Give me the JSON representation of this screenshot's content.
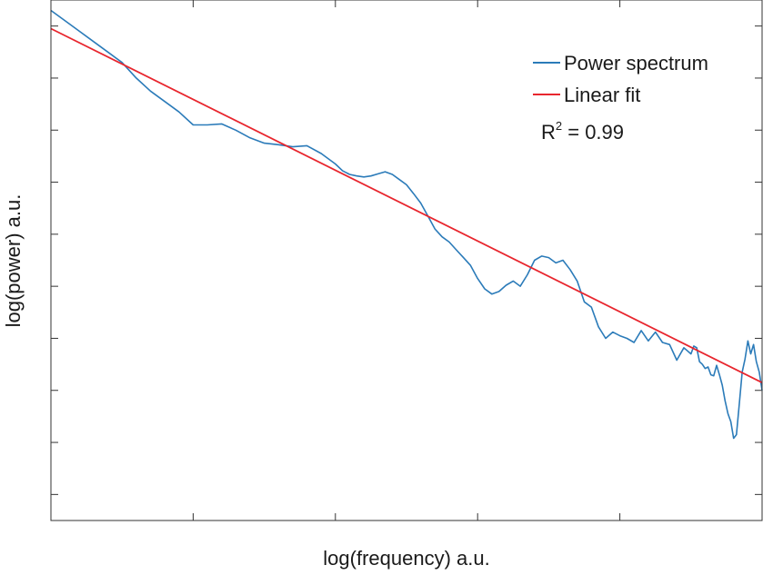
{
  "chart_data": {
    "type": "line",
    "title": "",
    "xlabel": "log(frequency) a.u.",
    "ylabel": "log(power) a.u.",
    "xlim": [
      0,
      5
    ],
    "ylim": [
      0,
      10
    ],
    "xticks": [
      1,
      2,
      3,
      4
    ],
    "yticks": [
      0.5,
      1.5,
      2.5,
      3.5,
      4.5,
      5.5,
      6.5,
      7.5,
      8.5,
      9.5
    ],
    "tick_labels_shown": false,
    "grid": false,
    "legend_position": "top-right",
    "annotation": {
      "base": "R",
      "sup": "2",
      "rest": " = 0.99"
    },
    "series": [
      {
        "name": "Power spectrum",
        "color": "#2b7bb9",
        "x": [
          0,
          0.1,
          0.2,
          0.3,
          0.4,
          0.5,
          0.6,
          0.7,
          0.8,
          0.9,
          1.0,
          1.1,
          1.2,
          1.3,
          1.4,
          1.5,
          1.6,
          1.7,
          1.8,
          1.9,
          2.0,
          2.05,
          2.1,
          2.15,
          2.2,
          2.25,
          2.3,
          2.35,
          2.4,
          2.45,
          2.5,
          2.55,
          2.6,
          2.65,
          2.7,
          2.75,
          2.8,
          2.85,
          2.9,
          2.95,
          3.0,
          3.05,
          3.1,
          3.15,
          3.2,
          3.25,
          3.3,
          3.35,
          3.4,
          3.45,
          3.5,
          3.55,
          3.6,
          3.65,
          3.7,
          3.75,
          3.8,
          3.85,
          3.9,
          3.95,
          4.0,
          4.05,
          4.1,
          4.15,
          4.2,
          4.25,
          4.3,
          4.35,
          4.4,
          4.45,
          4.5,
          4.52,
          4.54,
          4.56,
          4.58,
          4.6,
          4.62,
          4.64,
          4.66,
          4.68,
          4.7,
          4.72,
          4.74,
          4.76,
          4.78,
          4.8,
          4.82,
          4.84,
          4.86,
          4.88,
          4.9,
          4.92,
          4.94,
          4.96,
          4.98,
          5.0
        ],
        "y": [
          9.8,
          9.6,
          9.4,
          9.2,
          9.0,
          8.8,
          8.5,
          8.25,
          8.05,
          7.85,
          7.6,
          7.6,
          7.62,
          7.5,
          7.35,
          7.25,
          7.22,
          7.18,
          7.2,
          7.05,
          6.85,
          6.72,
          6.65,
          6.62,
          6.6,
          6.62,
          6.66,
          6.7,
          6.65,
          6.55,
          6.45,
          6.28,
          6.1,
          5.85,
          5.6,
          5.45,
          5.35,
          5.2,
          5.05,
          4.9,
          4.65,
          4.45,
          4.35,
          4.4,
          4.52,
          4.6,
          4.5,
          4.72,
          5.0,
          5.08,
          5.05,
          4.95,
          5.0,
          4.82,
          4.6,
          4.2,
          4.1,
          3.72,
          3.5,
          3.62,
          3.55,
          3.5,
          3.42,
          3.65,
          3.45,
          3.62,
          3.42,
          3.38,
          3.08,
          3.32,
          3.2,
          3.35,
          3.32,
          3.05,
          3.0,
          2.92,
          2.95,
          2.8,
          2.78,
          2.98,
          2.8,
          2.6,
          2.3,
          2.05,
          1.9,
          1.58,
          1.65,
          2.25,
          2.85,
          3.1,
          3.45,
          3.2,
          3.38,
          3.05,
          2.85,
          2.5
        ]
      },
      {
        "name": "Linear fit",
        "color": "#e8262e",
        "x": [
          0,
          5
        ],
        "y": [
          9.45,
          2.65
        ]
      }
    ]
  }
}
